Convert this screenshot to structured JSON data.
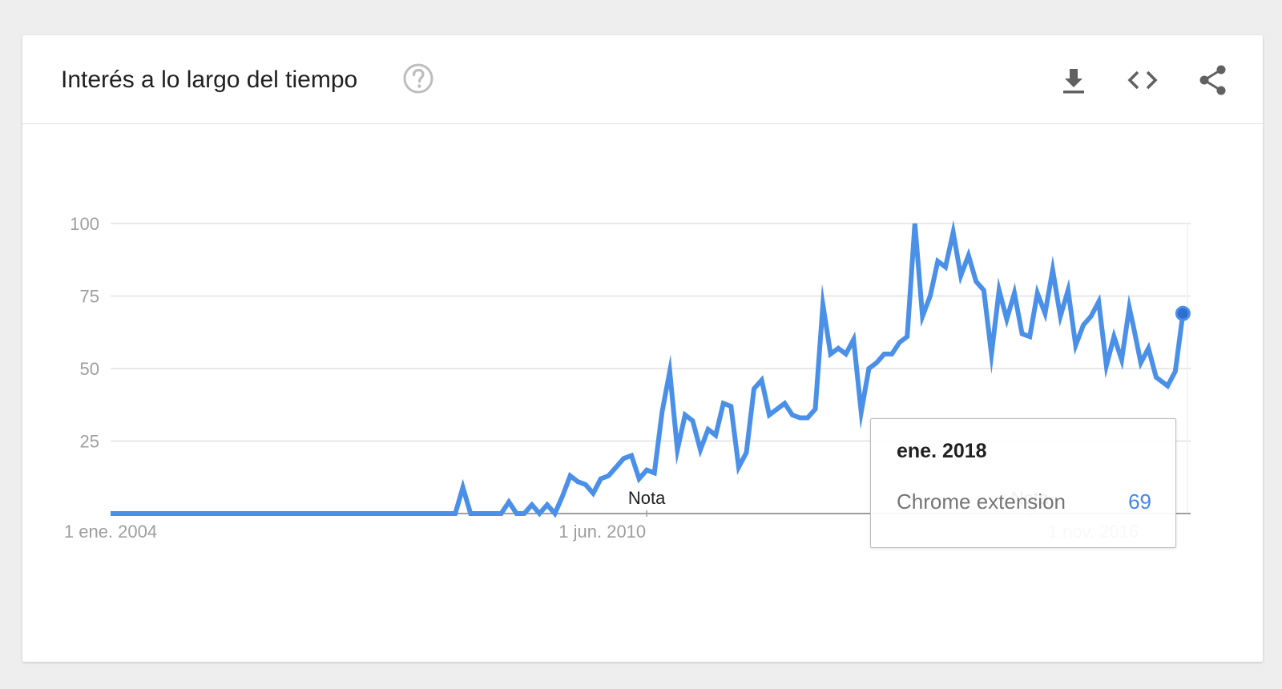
{
  "header": {
    "title": "Interés a lo largo del tiempo",
    "help_icon": "help-circle-icon",
    "actions": [
      {
        "name": "download",
        "icon": "download-icon"
      },
      {
        "name": "embed",
        "icon": "code-icon"
      },
      {
        "name": "share",
        "icon": "share-icon"
      }
    ]
  },
  "colors": {
    "line": "#4a90e8",
    "grid": "#e0e0e0",
    "axis": "#9e9e9e",
    "card": "#ffffff",
    "background": "#eeeeee"
  },
  "tooltip": {
    "date": "ene. 2018",
    "series": "Chrome extension",
    "value": "69"
  },
  "chart_data": {
    "type": "line",
    "title": "",
    "xlabel": "",
    "ylabel": "",
    "ylim": [
      0,
      100
    ],
    "yticks": [
      25,
      50,
      75,
      100
    ],
    "ytick_labels": [
      "25",
      "50",
      "75",
      "100"
    ],
    "xticks": [
      {
        "label": "1 ene. 2004",
        "year": 2004.0
      },
      {
        "label": "1 jun. 2010",
        "year": 2010.42
      },
      {
        "label": "1 nov. 2016",
        "year": 2016.83
      }
    ],
    "xlim": [
      2004.0,
      2018.08
    ],
    "grid": true,
    "legend": "none",
    "annotations": [
      {
        "text": "Nota",
        "year": 2011.0
      },
      {
        "text": "Nota",
        "year": 2016.0
      }
    ],
    "series": [
      {
        "name": "Chrome extension",
        "highlight": {
          "year": 2018.0,
          "value": 69
        },
        "points": [
          [
            2004.0,
            0
          ],
          [
            2006.5,
            0
          ],
          [
            2008.5,
            0
          ],
          [
            2008.6,
            9
          ],
          [
            2008.7,
            0
          ],
          [
            2008.9,
            0
          ],
          [
            2009.0,
            0
          ],
          [
            2009.1,
            0
          ],
          [
            2009.2,
            4
          ],
          [
            2009.3,
            0
          ],
          [
            2009.4,
            0
          ],
          [
            2009.5,
            3
          ],
          [
            2009.6,
            0
          ],
          [
            2009.7,
            3
          ],
          [
            2009.8,
            0
          ],
          [
            2009.9,
            6
          ],
          [
            2010.0,
            13
          ],
          [
            2010.1,
            11
          ],
          [
            2010.2,
            10
          ],
          [
            2010.3,
            7
          ],
          [
            2010.4,
            12
          ],
          [
            2010.5,
            13
          ],
          [
            2010.6,
            16
          ],
          [
            2010.7,
            19
          ],
          [
            2010.8,
            20
          ],
          [
            2010.9,
            12
          ],
          [
            2011.0,
            15
          ],
          [
            2011.1,
            14
          ],
          [
            2011.2,
            35
          ],
          [
            2011.3,
            49
          ],
          [
            2011.4,
            22
          ],
          [
            2011.5,
            34
          ],
          [
            2011.6,
            32
          ],
          [
            2011.7,
            22
          ],
          [
            2011.8,
            29
          ],
          [
            2011.9,
            27
          ],
          [
            2012.0,
            38
          ],
          [
            2012.1,
            37
          ],
          [
            2012.2,
            16
          ],
          [
            2012.3,
            21
          ],
          [
            2012.4,
            43
          ],
          [
            2012.5,
            46
          ],
          [
            2012.6,
            34
          ],
          [
            2012.7,
            36
          ],
          [
            2012.8,
            38
          ],
          [
            2012.9,
            34
          ],
          [
            2013.0,
            33
          ],
          [
            2013.1,
            33
          ],
          [
            2013.2,
            36
          ],
          [
            2013.3,
            72
          ],
          [
            2013.4,
            55
          ],
          [
            2013.5,
            57
          ],
          [
            2013.6,
            55
          ],
          [
            2013.7,
            60
          ],
          [
            2013.8,
            35
          ],
          [
            2013.9,
            50
          ],
          [
            2014.0,
            52
          ],
          [
            2014.1,
            55
          ],
          [
            2014.2,
            55
          ],
          [
            2014.3,
            59
          ],
          [
            2014.4,
            61
          ],
          [
            2014.5,
            100
          ],
          [
            2014.6,
            68
          ],
          [
            2014.7,
            75
          ],
          [
            2014.8,
            87
          ],
          [
            2014.9,
            85
          ],
          [
            2015.0,
            97
          ],
          [
            2015.1,
            82
          ],
          [
            2015.2,
            89
          ],
          [
            2015.3,
            80
          ],
          [
            2015.4,
            77
          ],
          [
            2015.5,
            55
          ],
          [
            2015.6,
            77
          ],
          [
            2015.7,
            67
          ],
          [
            2015.8,
            76
          ],
          [
            2015.9,
            62
          ],
          [
            2016.0,
            61
          ],
          [
            2016.1,
            76
          ],
          [
            2016.2,
            69
          ],
          [
            2016.3,
            84
          ],
          [
            2016.4,
            68
          ],
          [
            2016.5,
            77
          ],
          [
            2016.6,
            58
          ],
          [
            2016.7,
            65
          ],
          [
            2016.8,
            68
          ],
          [
            2016.9,
            73
          ],
          [
            2017.0,
            51
          ],
          [
            2017.1,
            61
          ],
          [
            2017.2,
            53
          ],
          [
            2017.3,
            71
          ],
          [
            2017.35,
            65
          ],
          [
            2017.45,
            52
          ],
          [
            2017.55,
            57
          ],
          [
            2017.65,
            47
          ],
          [
            2017.75,
            45
          ],
          [
            2017.8,
            44
          ],
          [
            2017.9,
            49
          ],
          [
            2018.0,
            69
          ]
        ]
      }
    ]
  }
}
